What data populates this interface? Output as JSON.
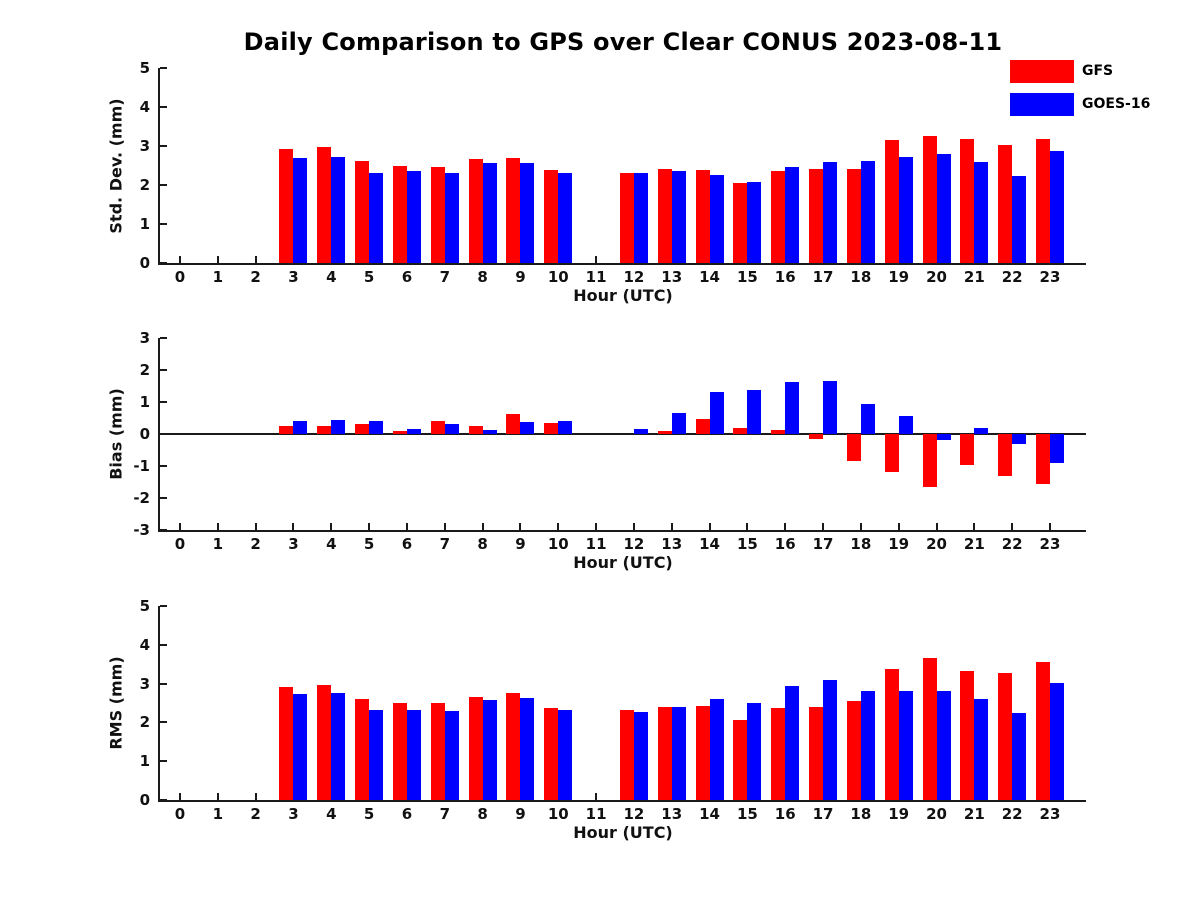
{
  "title": "Daily Comparison to GPS over Clear CONUS 2023-08-11",
  "colors": {
    "gfs_red": "#ff0000",
    "goes_blue": "#0000ff",
    "axis": "#1a1a1a"
  },
  "legend": {
    "position": "top-right",
    "items": [
      {
        "label": "GFS",
        "color": "#ff0000"
      },
      {
        "label": "GOES-16",
        "color": "#0000ff"
      }
    ]
  },
  "chart_data": [
    {
      "id": "stddev",
      "type": "bar",
      "title": "",
      "xlabel": "Hour (UTC)",
      "ylabel": "Std. Dev. (mm)",
      "ylim": [
        0,
        5
      ],
      "yticks": [
        "0",
        "1",
        "2",
        "3",
        "4",
        "5"
      ],
      "grid": false,
      "categories": [
        "0",
        "1",
        "2",
        "3",
        "4",
        "5",
        "6",
        "7",
        "8",
        "9",
        "10",
        "11",
        "12",
        "13",
        "14",
        "15",
        "16",
        "17",
        "18",
        "19",
        "20",
        "21",
        "22",
        "23"
      ],
      "series": [
        {
          "name": "GFS",
          "color": "#ff0000",
          "values": [
            null,
            null,
            null,
            2.93,
            2.97,
            2.62,
            2.5,
            2.47,
            2.66,
            2.68,
            2.38,
            null,
            2.3,
            2.42,
            2.38,
            2.05,
            2.37,
            2.42,
            2.4,
            3.15,
            3.25,
            3.17,
            3.02,
            3.17
          ]
        },
        {
          "name": "GOES-16",
          "color": "#0000ff",
          "values": [
            null,
            null,
            null,
            2.7,
            2.72,
            2.3,
            2.35,
            2.3,
            2.57,
            2.57,
            2.32,
            null,
            2.3,
            2.37,
            2.25,
            2.08,
            2.45,
            2.6,
            2.62,
            2.73,
            2.8,
            2.6,
            2.22,
            2.87
          ]
        }
      ]
    },
    {
      "id": "bias",
      "type": "bar",
      "title": "",
      "xlabel": "Hour (UTC)",
      "ylabel": "Bias (mm)",
      "ylim": [
        -3,
        3
      ],
      "yticks": [
        "-3",
        "-2",
        "-1",
        "0",
        "1",
        "2",
        "3"
      ],
      "grid": false,
      "zero_line": true,
      "categories": [
        "0",
        "1",
        "2",
        "3",
        "4",
        "5",
        "6",
        "7",
        "8",
        "9",
        "10",
        "11",
        "12",
        "13",
        "14",
        "15",
        "16",
        "17",
        "18",
        "19",
        "20",
        "21",
        "22",
        "23"
      ],
      "series": [
        {
          "name": "GFS",
          "color": "#ff0000",
          "values": [
            null,
            null,
            null,
            0.25,
            0.25,
            0.31,
            0.1,
            0.42,
            0.26,
            0.63,
            0.33,
            null,
            0,
            0.08,
            0.48,
            0.2,
            0.13,
            -0.17,
            -0.85,
            -1.2,
            -1.65,
            -0.97,
            -1.3,
            -1.55
          ]
        },
        {
          "name": "GOES-16",
          "color": "#0000ff",
          "values": [
            null,
            null,
            null,
            0.42,
            0.45,
            0.42,
            0.16,
            0.32,
            0.14,
            0.38,
            0.4,
            null,
            0.16,
            0.65,
            1.3,
            1.38,
            1.63,
            1.65,
            0.95,
            0.57,
            -0.2,
            0.2,
            -0.32,
            -0.9
          ]
        }
      ]
    },
    {
      "id": "rms",
      "type": "bar",
      "title": "",
      "xlabel": "Hour (UTC)",
      "ylabel": "RMS (mm)",
      "ylim": [
        0,
        5
      ],
      "yticks": [
        "0",
        "1",
        "2",
        "3",
        "4",
        "5"
      ],
      "grid": false,
      "categories": [
        "0",
        "1",
        "2",
        "3",
        "4",
        "5",
        "6",
        "7",
        "8",
        "9",
        "10",
        "11",
        "12",
        "13",
        "14",
        "15",
        "16",
        "17",
        "18",
        "19",
        "20",
        "21",
        "22",
        "23"
      ],
      "series": [
        {
          "name": "GFS",
          "color": "#ff0000",
          "values": [
            null,
            null,
            null,
            2.92,
            2.97,
            2.6,
            2.5,
            2.5,
            2.65,
            2.77,
            2.38,
            null,
            2.32,
            2.4,
            2.43,
            2.07,
            2.38,
            2.4,
            2.55,
            3.38,
            3.65,
            3.32,
            3.28,
            3.55
          ]
        },
        {
          "name": "GOES-16",
          "color": "#0000ff",
          "values": [
            null,
            null,
            null,
            2.72,
            2.75,
            2.33,
            2.33,
            2.3,
            2.58,
            2.62,
            2.33,
            null,
            2.27,
            2.4,
            2.6,
            2.5,
            2.95,
            3.08,
            2.8,
            2.8,
            2.8,
            2.6,
            2.25,
            3.02
          ]
        }
      ]
    }
  ]
}
